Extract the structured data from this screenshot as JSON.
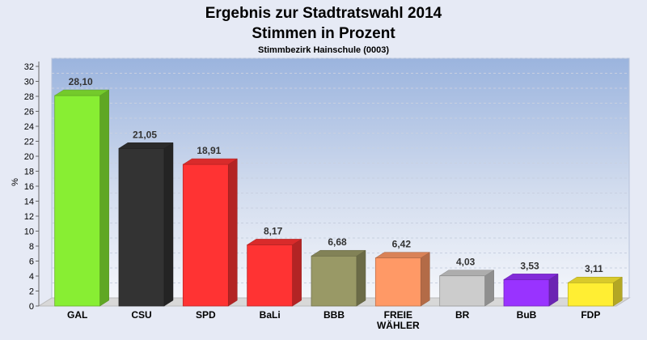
{
  "chart_data": {
    "type": "bar",
    "title": "Ergebnis zur Stadtratswahl 2014",
    "subtitle": "Stimmen in Prozent",
    "caption": "Stimmbezirk Hainschule (0003)",
    "ylabel": "%",
    "xlabel": "",
    "ylim": [
      0,
      32
    ],
    "yticks": [
      "0",
      "2",
      "4",
      "6",
      "8",
      "10",
      "12",
      "14",
      "16",
      "18",
      "20",
      "22",
      "24",
      "26",
      "28",
      "30",
      "32"
    ],
    "grid": true,
    "categories": [
      "GAL",
      "CSU",
      "SPD",
      "BaLi",
      "BBB",
      "FREIE WÄHLER",
      "BR",
      "BuB",
      "FDP"
    ],
    "values": [
      28.1,
      21.05,
      18.91,
      8.17,
      6.68,
      6.42,
      4.03,
      3.53,
      3.11
    ],
    "value_labels": [
      "28,10",
      "21,05",
      "18,91",
      "8,17",
      "6,68",
      "6,42",
      "4,03",
      "3,53",
      "3,11"
    ],
    "colors": [
      "#88ee33",
      "#333333",
      "#ff3333",
      "#ff3333",
      "#999966",
      "#ff9966",
      "#cccccc",
      "#9933ff",
      "#ffee33"
    ]
  }
}
